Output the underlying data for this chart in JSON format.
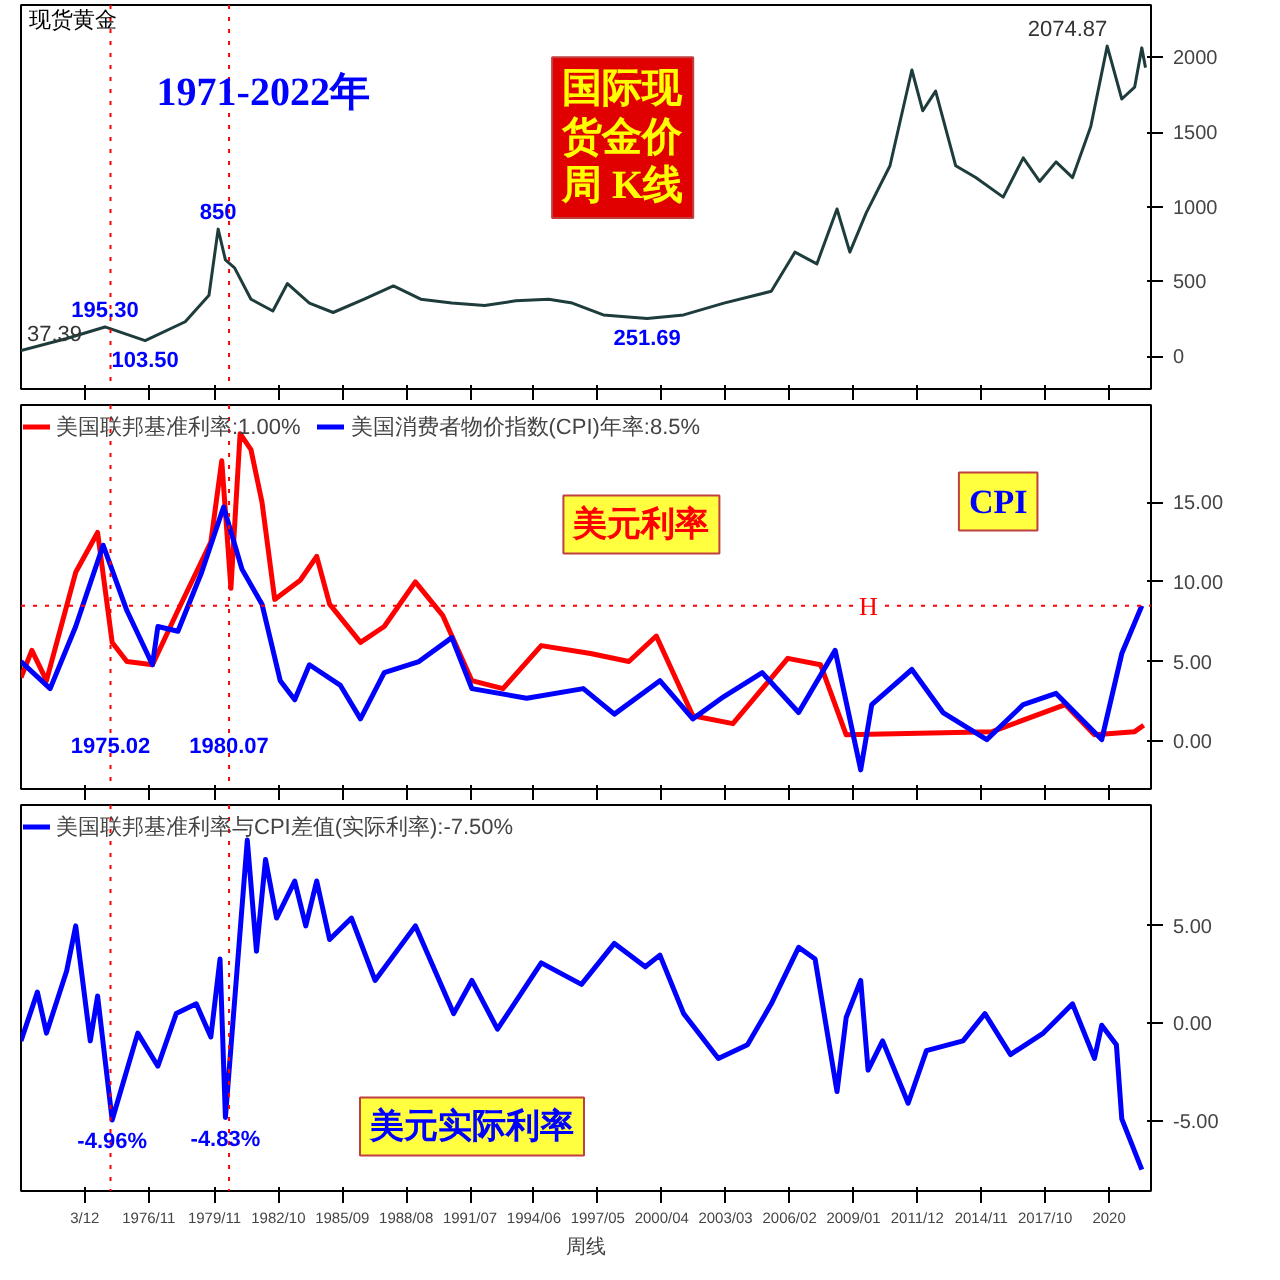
{
  "chart_data": [
    {
      "type": "line",
      "title": "现货黄金",
      "xlim": [
        "1971-01",
        "2022-08"
      ],
      "ylim": [
        -220,
        2350
      ],
      "yticks": [
        0,
        500,
        1000,
        1500,
        2000
      ],
      "xticks": [
        {
          "value": "1973-12",
          "label": null
        },
        {
          "value": "1976-11",
          "label": null
        },
        {
          "value": "1979-11",
          "label": null
        },
        {
          "value": "1982-10",
          "label": null
        },
        {
          "value": "1985-09",
          "label": null
        },
        {
          "value": "1988-08",
          "label": null
        },
        {
          "value": "1991-07",
          "label": null
        },
        {
          "value": "1994-06",
          "label": null
        },
        {
          "value": "1997-05",
          "label": null
        },
        {
          "value": "2000-04",
          "label": null
        },
        {
          "value": "2003-03",
          "label": null
        },
        {
          "value": "2006-02",
          "label": null
        },
        {
          "value": "2009-01",
          "label": null
        },
        {
          "value": "2011-12",
          "label": null
        },
        {
          "value": "2014-11",
          "label": null
        },
        {
          "value": "2017-10",
          "label": null
        },
        {
          "value": "2020-09",
          "label": null
        }
      ],
      "tick_labels": "y",
      "grid": false,
      "marker": "none",
      "line_style": "solid",
      "series": [
        {
          "color": "#1e3c3c",
          "x": [
            "1971-01",
            "1973-02",
            "1974-11",
            "1976-09",
            "1978-07",
            "1979-08",
            "1980-01",
            "1980-05",
            "1980-10",
            "1981-07",
            "1982-07",
            "1983-03",
            "1984-03",
            "1985-04",
            "1986-09",
            "1988-01",
            "1989-04",
            "1990-09",
            "1992-03",
            "1993-08",
            "1995-02",
            "1996-03",
            "1997-08",
            "1999-08",
            "2001-04",
            "2003-02",
            "2005-04",
            "2006-05",
            "2007-05",
            "2008-04",
            "2008-11",
            "2009-08",
            "2010-09",
            "2011-09",
            "2012-03",
            "2012-10",
            "2013-09",
            "2014-08",
            "2015-11",
            "2016-10",
            "2017-07",
            "2018-04",
            "2019-01",
            "2019-11",
            "2020-08",
            "2021-04",
            "2021-11",
            "2022-03",
            "2022-05"
          ],
          "values": [
            37.39,
            118,
            195.3,
            103.5,
            230,
            407,
            850,
            644,
            591,
            381,
            302,
            486,
            355,
            292,
            381,
            470,
            381,
            355,
            339,
            370,
            381,
            355,
            276,
            251.69,
            276,
            355,
            434,
            696,
            617,
            985,
            696,
            959,
            1274,
            1915,
            1642,
            1774,
            1274,
            1195,
            1064,
            1327,
            1169,
            1300,
            1195,
            1537,
            2074.87,
            1721,
            1800,
            2063,
            1931
          ]
        }
      ],
      "ref_lines": [
        {
          "axis": "x",
          "value": "1975-02",
          "color": "#ff0000",
          "line_style": "dotted"
        },
        {
          "axis": "x",
          "value": "1980-07",
          "color": "#ff0000",
          "line_style": "dotted"
        }
      ],
      "annotations": [
        "1971-2022年",
        "国际现货金价周 K线",
        {
          "text": "37.39",
          "x": "1971-01",
          "y": 37.39
        },
        {
          "text": "195.30",
          "x": "1974-11",
          "y": 195.3
        },
        {
          "text": "103.50",
          "x": "1976-09",
          "y": 103.5
        },
        {
          "text": "850",
          "x": "1980-01",
          "y": 850
        },
        {
          "text": "251.69",
          "x": "1999-08",
          "y": 251.69
        },
        {
          "text": "2074.87",
          "x": "2020-08",
          "y": 2074.87
        }
      ]
    },
    {
      "type": "line",
      "xlim": [
        "1971-01",
        "2022-08"
      ],
      "ylim": [
        -3.0,
        21.1
      ],
      "yticks": [
        {
          "value": 0,
          "label": "0.00"
        },
        {
          "value": 5,
          "label": "5.00"
        },
        {
          "value": 10,
          "label": "10.00"
        },
        {
          "value": 15,
          "label": "15.00"
        }
      ],
      "xticks": [
        {
          "value": "1973-12",
          "label": null
        },
        {
          "value": "1976-11",
          "label": null
        },
        {
          "value": "1979-11",
          "label": null
        },
        {
          "value": "1982-10",
          "label": null
        },
        {
          "value": "1985-09",
          "label": null
        },
        {
          "value": "1988-08",
          "label": null
        },
        {
          "value": "1991-07",
          "label": null
        },
        {
          "value": "1994-06",
          "label": null
        },
        {
          "value": "1997-05",
          "label": null
        },
        {
          "value": "2000-04",
          "label": null
        },
        {
          "value": "2003-03",
          "label": null
        },
        {
          "value": "2006-02",
          "label": null
        },
        {
          "value": "2009-01",
          "label": null
        },
        {
          "value": "2011-12",
          "label": null
        },
        {
          "value": "2014-11",
          "label": null
        },
        {
          "value": "2017-10",
          "label": null
        },
        {
          "value": "2020-09",
          "label": null
        }
      ],
      "tick_labels": "y",
      "grid": false,
      "legend": "top left",
      "marker": "none",
      "line_style": "solid",
      "series": [
        {
          "name": "美国联邦基准利率:1.00%",
          "color": "#ff0000",
          "x": [
            "1971-01",
            "1971-07",
            "1972-03",
            "1973-07",
            "1974-07",
            "1975-03",
            "1975-11",
            "1977-01",
            "1978-03",
            "1979-09",
            "1980-03",
            "1980-08",
            "1981-01",
            "1981-07",
            "1982-01",
            "1982-08",
            "1983-10",
            "1984-07",
            "1985-02",
            "1986-07",
            "1987-08",
            "1989-01",
            "1990-04",
            "1991-08",
            "1993-01",
            "1994-10",
            "1997-01",
            "1998-10",
            "2000-01",
            "2001-09",
            "2003-07",
            "2006-01",
            "2007-07",
            "2008-09",
            "2015-05",
            "2018-09",
            "2020-01",
            "2021-11",
            "2022-04"
          ],
          "values": [
            4.0,
            5.7,
            3.8,
            10.6,
            13.1,
            6.2,
            5.0,
            4.8,
            8.2,
            12.5,
            17.6,
            9.6,
            19.3,
            18.3,
            15.0,
            8.9,
            10.1,
            11.6,
            8.6,
            6.2,
            7.2,
            10.0,
            7.9,
            3.8,
            3.3,
            6.0,
            5.5,
            5.0,
            6.6,
            1.6,
            1.1,
            5.2,
            4.8,
            0.4,
            0.6,
            2.3,
            0.4,
            0.6,
            1.0
          ]
        },
        {
          "name": "美国消费者物价指数(CPI)年率:8.5%",
          "color": "#0000ff",
          "x": [
            "1971-01",
            "1972-05",
            "1973-07",
            "1974-10",
            "1975-11",
            "1977-01",
            "1977-04",
            "1978-03",
            "1979-04",
            "1980-04",
            "1981-02",
            "1982-01",
            "1982-11",
            "1983-07",
            "1984-03",
            "1985-08",
            "1986-07",
            "1987-08",
            "1989-03",
            "1990-09",
            "1991-08",
            "1994-02",
            "1996-09",
            "1998-02",
            "2000-03",
            "2001-09",
            "2003-02",
            "2004-11",
            "2006-07",
            "2008-03",
            "2009-05",
            "2009-11",
            "2011-09",
            "2013-02",
            "2015-02",
            "2016-10",
            "2018-04",
            "2020-05",
            "2021-04",
            "2022-03"
          ],
          "values": [
            5.0,
            3.3,
            7.2,
            12.3,
            8.2,
            4.8,
            7.2,
            6.9,
            10.6,
            14.7,
            10.8,
            8.6,
            3.8,
            2.6,
            4.8,
            3.5,
            1.4,
            4.3,
            5.0,
            6.5,
            3.3,
            2.7,
            3.3,
            1.7,
            3.8,
            1.4,
            2.8,
            4.3,
            1.8,
            5.7,
            -1.8,
            2.3,
            4.5,
            1.8,
            0.1,
            2.3,
            3.0,
            0.1,
            5.5,
            8.5
          ]
        }
      ],
      "ref_lines": [
        {
          "axis": "x",
          "value": "1975-02",
          "label": "1975.02",
          "color": "#ff0000",
          "line_style": "dotted"
        },
        {
          "axis": "x",
          "value": "1980-07",
          "label": "1980.07",
          "color": "#ff0000",
          "line_style": "dotted"
        },
        {
          "axis": "y",
          "value": 8.5,
          "label": "H",
          "color": "#ff0000",
          "line_style": "dotted"
        }
      ],
      "annotations": [
        "美元利率",
        "CPI"
      ]
    },
    {
      "type": "line",
      "xlim": [
        "1971-01",
        "2022-08"
      ],
      "ylim": [
        -8.6,
        11.2
      ],
      "xlabel": "周线",
      "yticks": [
        {
          "value": -5,
          "label": "-5.00"
        },
        {
          "value": 0,
          "label": "0.00"
        },
        {
          "value": 5,
          "label": "5.00"
        }
      ],
      "xticks": [
        {
          "value": "1973-12",
          "label": "3/12"
        },
        {
          "value": "1976-11",
          "label": "1976/11"
        },
        {
          "value": "1979-11",
          "label": "1979/11"
        },
        {
          "value": "1982-10",
          "label": "1982/10"
        },
        {
          "value": "1985-09",
          "label": "1985/09"
        },
        {
          "value": "1988-08",
          "label": "1988/08"
        },
        {
          "value": "1991-07",
          "label": "1991/07"
        },
        {
          "value": "1994-06",
          "label": "1994/06"
        },
        {
          "value": "1997-05",
          "label": "1997/05"
        },
        {
          "value": "2000-04",
          "label": "2000/04"
        },
        {
          "value": "2003-03",
          "label": "2003/03"
        },
        {
          "value": "2006-02",
          "label": "2006/02"
        },
        {
          "value": "2009-01",
          "label": "2009/01"
        },
        {
          "value": "2011-12",
          "label": "2011/12"
        },
        {
          "value": "2014-11",
          "label": "2014/11"
        },
        {
          "value": "2017-10",
          "label": "2017/10"
        },
        {
          "value": "2020-09",
          "label": "2020"
        }
      ],
      "grid": false,
      "legend": "top left",
      "marker": "none",
      "line_style": "solid",
      "series": [
        {
          "name": "美国联邦基准利率与CPI差值(实际利率):-7.50%",
          "color": "#0000ff",
          "x": [
            "1971-01",
            "1971-10",
            "1972-03",
            "1973-02",
            "1973-07",
            "1974-03",
            "1974-07",
            "1975-03",
            "1976-05",
            "1977-04",
            "1978-02",
            "1979-01",
            "1979-09",
            "1980-02",
            "1980-05",
            "1981-05",
            "1981-10",
            "1982-03",
            "1982-09",
            "1983-07",
            "1984-01",
            "1984-07",
            "1985-02",
            "1986-02",
            "1987-03",
            "1989-01",
            "1990-10",
            "1991-08",
            "1992-10",
            "1994-10",
            "1996-08",
            "1998-02",
            "1999-07",
            "2000-03",
            "2001-04",
            "2002-11",
            "2004-03",
            "2005-04",
            "2006-07",
            "2007-04",
            "2008-04",
            "2008-09",
            "2009-05",
            "2009-09",
            "2010-05",
            "2011-07",
            "2012-05",
            "2014-01",
            "2015-01",
            "2016-03",
            "2017-09",
            "2019-01",
            "2020-01",
            "2020-05",
            "2021-01",
            "2021-04",
            "2022-03"
          ],
          "values": [
            -0.9,
            1.6,
            -0.5,
            2.7,
            5.0,
            -0.9,
            1.4,
            -4.96,
            -0.5,
            -2.2,
            0.5,
            1.0,
            -0.7,
            3.3,
            -4.83,
            9.4,
            3.7,
            8.4,
            5.4,
            7.3,
            5.0,
            7.3,
            4.3,
            5.4,
            2.2,
            5.0,
            0.5,
            2.2,
            -0.3,
            3.1,
            2.0,
            4.1,
            2.9,
            3.5,
            0.5,
            -1.8,
            -1.1,
            1.0,
            3.9,
            3.3,
            -3.5,
            0.3,
            2.2,
            -2.4,
            -0.9,
            -4.1,
            -1.4,
            -0.9,
            0.5,
            -1.6,
            -0.5,
            1.0,
            -1.8,
            -0.1,
            -1.1,
            -4.9,
            -7.5
          ]
        }
      ],
      "ref_lines": [
        {
          "axis": "x",
          "value": "1975-02",
          "color": "#ff0000",
          "line_style": "dotted"
        },
        {
          "axis": "x",
          "value": "1980-07",
          "color": "#ff0000",
          "line_style": "dotted"
        }
      ],
      "annotations": [
        "美元实际利率",
        {
          "text": "-4.96%",
          "x": "1975-03",
          "y": -4.96
        },
        {
          "text": "-4.83%",
          "x": "1980-05",
          "y": -4.83
        }
      ]
    }
  ]
}
